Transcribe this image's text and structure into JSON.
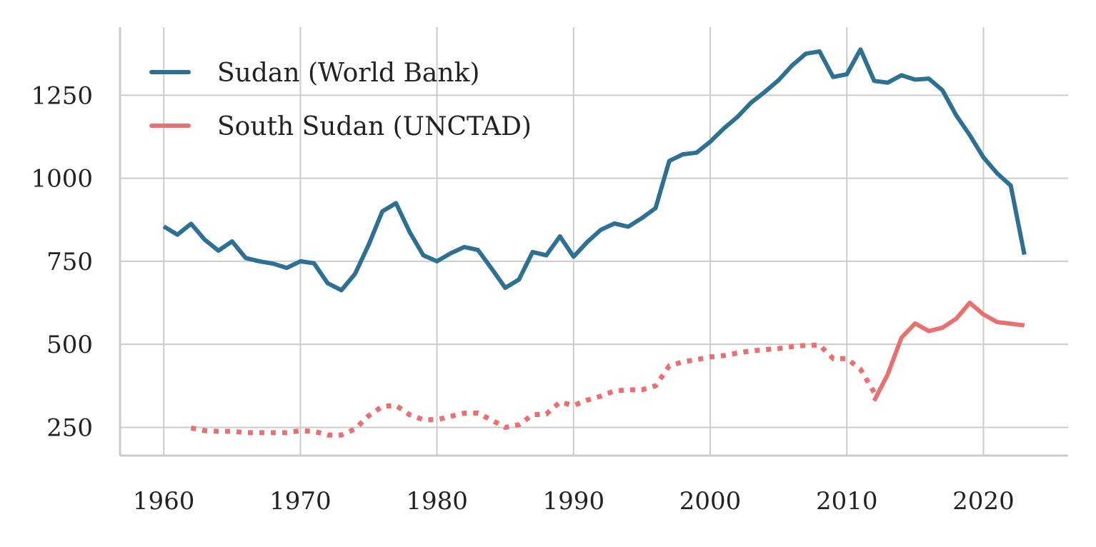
{
  "chart_data": {
    "type": "line",
    "title": "",
    "xlabel": "",
    "ylabel": "",
    "xlim": [
      1956.8,
      1926.2
    ],
    "ylim": [
      165,
      1455
    ],
    "x_ticks": [
      1960,
      1970,
      1980,
      1990,
      2000,
      2010,
      2020
    ],
    "x_tick_labels": [
      "1960",
      "1970",
      "1980",
      "1990",
      "2000",
      "2010",
      "2020"
    ],
    "y_ticks": [
      250,
      500,
      750,
      1000,
      1250
    ],
    "y_tick_labels": [
      "250",
      "500",
      "750",
      "1000",
      "1250"
    ],
    "grid": true,
    "legend_position": "top-left",
    "legend": [
      "Sudan (World Bank)",
      "South Sudan (UNCTAD)"
    ],
    "series": [
      {
        "name": "Sudan (World Bank)",
        "color": "#2e7091",
        "style": "solid",
        "x": [
          1960,
          1961,
          1962,
          1963,
          1964,
          1965,
          1966,
          1967,
          1968,
          1969,
          1970,
          1971,
          1972,
          1973,
          1974,
          1975,
          1976,
          1977,
          1978,
          1979,
          1980,
          1981,
          1982,
          1983,
          1984,
          1985,
          1986,
          1987,
          1988,
          1989,
          1990,
          1991,
          1992,
          1993,
          1994,
          1995,
          1996,
          1997,
          1998,
          1999,
          2000,
          2001,
          2002,
          2003,
          2004,
          2005,
          2006,
          2007,
          2008,
          2009,
          2010,
          2011,
          2012,
          2013,
          2014,
          2015,
          2016,
          2017,
          2018,
          2019,
          2020,
          2021,
          2022,
          2023
        ],
        "y": [
          855,
          830,
          863,
          815,
          782,
          810,
          760,
          750,
          743,
          730,
          750,
          744,
          684,
          663,
          712,
          800,
          900,
          925,
          838,
          768,
          750,
          774,
          793,
          784,
          728,
          670,
          695,
          778,
          768,
          825,
          764,
          808,
          845,
          864,
          854,
          880,
          910,
          1052,
          1072,
          1077,
          1110,
          1150,
          1185,
          1228,
          1260,
          1295,
          1340,
          1375,
          1382,
          1305,
          1313,
          1388,
          1293,
          1288,
          1310,
          1297,
          1300,
          1265,
          1190,
          1130,
          1063,
          1015,
          978,
          770
        ]
      },
      {
        "name": "South Sudan (UNCTAD)",
        "color": "#e87070",
        "style": "solid",
        "x": [
          2012,
          2013,
          2014,
          2015,
          2016,
          2017,
          2018,
          2019,
          2020,
          2021,
          2022,
          2023
        ],
        "y": [
          330,
          410,
          520,
          563,
          540,
          550,
          577,
          625,
          590,
          567,
          562,
          557
        ]
      },
      {
        "name": "",
        "color": "#e87070",
        "style": "dotted",
        "x": [
          1962,
          1963,
          1964,
          1965,
          1966,
          1967,
          1968,
          1969,
          1970,
          1971,
          1972,
          1973,
          1974,
          1975,
          1976,
          1977,
          1978,
          1979,
          1980,
          1981,
          1982,
          1983,
          1984,
          1985,
          1986,
          1987,
          1988,
          1989,
          1990,
          1991,
          1992,
          1993,
          1994,
          1995,
          1996,
          1997,
          1998,
          1999,
          2000,
          2001,
          2002,
          2003,
          2004,
          2005,
          2006,
          2007,
          2008,
          2009,
          2010,
          2011,
          2012
        ],
        "y": [
          248,
          240,
          238,
          238,
          234,
          234,
          234,
          234,
          240,
          238,
          227,
          227,
          245,
          285,
          313,
          316,
          288,
          273,
          273,
          283,
          293,
          293,
          272,
          250,
          258,
          288,
          290,
          326,
          316,
          332,
          344,
          360,
          363,
          363,
          375,
          435,
          447,
          454,
          462,
          466,
          474,
          480,
          484,
          487,
          493,
          497,
          498,
          457,
          457,
          425,
          355
        ]
      }
    ]
  }
}
